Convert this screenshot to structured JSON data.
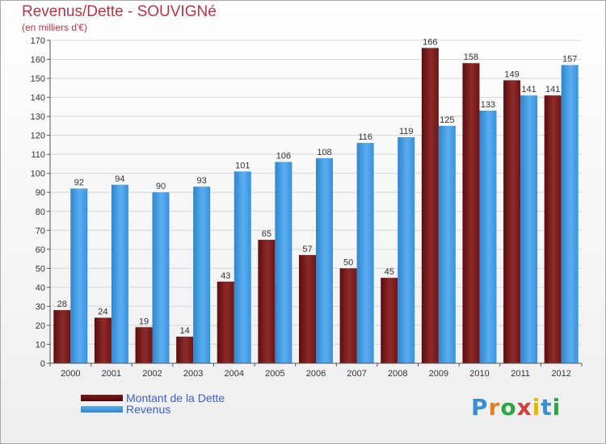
{
  "title": "Revenus/Dette - SOUVIGNé",
  "subtitle": "(en milliers d'€)",
  "logo": {
    "letters": [
      "P",
      "r",
      "o",
      "x",
      "i",
      "t",
      "i"
    ],
    "colors": [
      "#3a8fd4",
      "#e67e22",
      "#27a844",
      "#d63c3c",
      "#e6b800",
      "#3a8fd4",
      "#27a844"
    ]
  },
  "chart_data": {
    "type": "bar",
    "categories": [
      "2000",
      "2001",
      "2002",
      "2003",
      "2004",
      "2005",
      "2006",
      "2007",
      "2008",
      "2009",
      "2010",
      "2011",
      "2012"
    ],
    "series": [
      {
        "name": "Montant de la Dette",
        "values": [
          28,
          24,
          19,
          14,
          43,
          65,
          57,
          50,
          45,
          166,
          158,
          149,
          141
        ],
        "color": "#7a1a1a"
      },
      {
        "name": "Revenus",
        "values": [
          92,
          94,
          90,
          93,
          101,
          106,
          108,
          116,
          119,
          125,
          133,
          141,
          157
        ],
        "color": "#3d9ae0"
      }
    ],
    "ylim": [
      0,
      170
    ],
    "yticks": [
      0,
      10,
      20,
      30,
      40,
      50,
      60,
      70,
      80,
      90,
      100,
      110,
      120,
      130,
      140,
      150,
      160,
      170
    ],
    "grid": true,
    "legend": "bottom-left"
  }
}
